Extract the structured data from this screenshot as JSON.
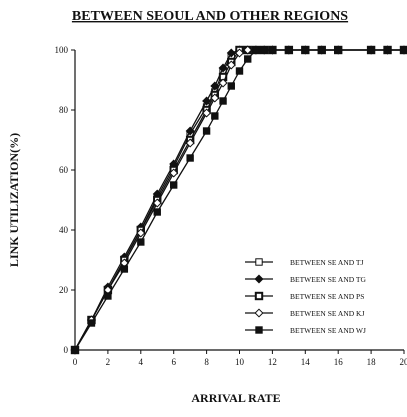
{
  "chart_data": {
    "type": "line",
    "title": "BETWEEN SEOUL AND OTHER REGIONS",
    "xlabel": "ARRIVAL RATE",
    "ylabel": "LINK UTILIZATION(%)",
    "xlim": [
      0,
      20
    ],
    "ylim": [
      0,
      100
    ],
    "xticks": [
      0,
      2,
      4,
      6,
      8,
      10,
      12,
      14,
      16,
      18,
      20
    ],
    "yticks": [
      0,
      20,
      40,
      60,
      80,
      100
    ],
    "grid": false,
    "legend_position": "bottom-right",
    "x": [
      0,
      1,
      2,
      3,
      4,
      5,
      6,
      7,
      8,
      8.5,
      9,
      9.5,
      10,
      10.5,
      11,
      11.5,
      12,
      13,
      14,
      15,
      16,
      18,
      19,
      20
    ],
    "series": [
      {
        "name": "BETWEEN SE AND TJ",
        "marker": "open-square",
        "values": [
          0,
          10,
          20,
          30,
          40,
          51,
          61,
          72,
          81,
          86,
          93,
          98,
          100,
          100,
          100,
          100,
          100,
          100,
          100,
          100,
          100,
          100,
          100,
          100
        ]
      },
      {
        "name": "BETWEEN SE AND TG",
        "marker": "filled-diamond",
        "values": [
          0,
          10,
          21,
          31,
          41,
          52,
          62,
          73,
          83,
          88,
          94,
          99,
          100,
          100,
          100,
          100,
          100,
          100,
          100,
          100,
          100,
          100,
          100,
          100
        ]
      },
      {
        "name": "BETWEEN SE AND PS",
        "marker": "bold-open-square",
        "values": [
          0,
          10,
          20,
          30,
          40,
          50,
          60,
          70,
          80,
          85,
          91,
          96,
          100,
          100,
          100,
          100,
          100,
          100,
          100,
          100,
          100,
          100,
          100,
          100
        ]
      },
      {
        "name": "BETWEEN SE AND KJ",
        "marker": "open-diamond",
        "values": [
          0,
          10,
          20,
          29,
          39,
          49,
          59,
          69,
          79,
          84,
          89,
          95,
          99,
          100,
          100,
          100,
          100,
          100,
          100,
          100,
          100,
          100,
          100,
          100
        ]
      },
      {
        "name": "BETWEEN SE AND WJ",
        "marker": "filled-square",
        "values": [
          0,
          9,
          18,
          27,
          36,
          46,
          55,
          64,
          73,
          78,
          83,
          88,
          93,
          97,
          100,
          100,
          100,
          100,
          100,
          100,
          100,
          100,
          100,
          100
        ]
      }
    ]
  }
}
